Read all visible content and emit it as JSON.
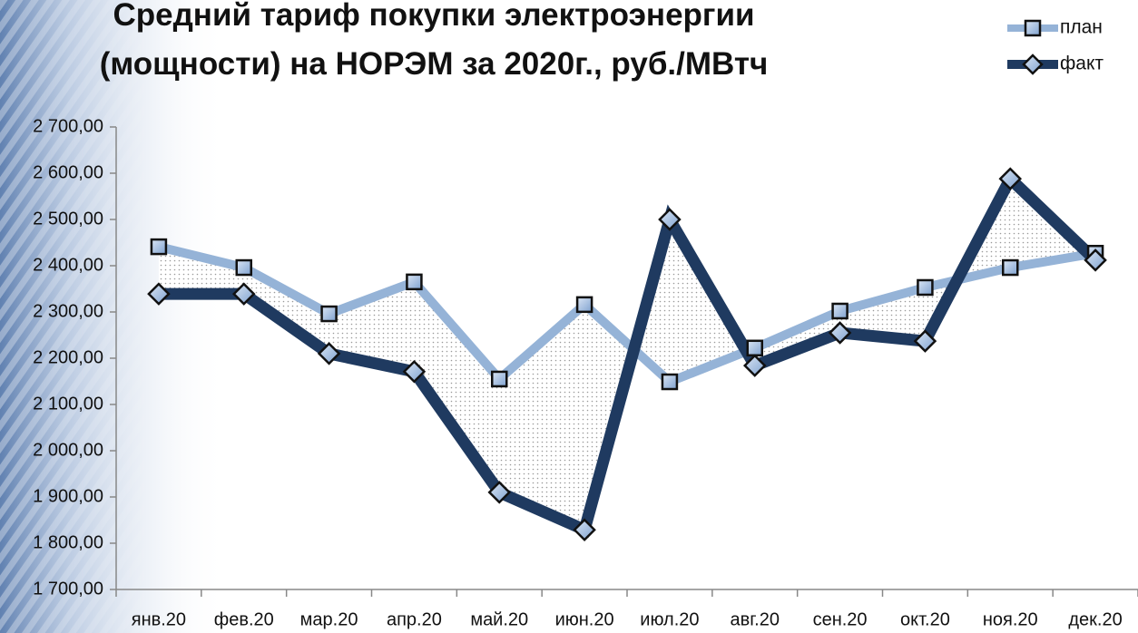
{
  "chart_data": {
    "type": "line",
    "title": [
      "Средний тариф покупки электроэнергии",
      "(мощности) на НОРЭМ за 2020г., руб./МВтч"
    ],
    "categories": [
      "янв.20",
      "фев.20",
      "мар.20",
      "апр.20",
      "май.20",
      "июн.20",
      "июл.20",
      "авг.20",
      "сен.20",
      "окт.20",
      "ноя.20",
      "дек.20"
    ],
    "series": [
      {
        "name": "план",
        "color": "#95b3d7",
        "marker": "square",
        "values": [
          2441,
          2396,
          2296,
          2365,
          2155,
          2316,
          2149,
          2222,
          2302,
          2353,
          2396,
          2427
        ]
      },
      {
        "name": "факт",
        "color": "#1f3a60",
        "marker": "diamond",
        "values": [
          2339,
          2339,
          2210,
          2171,
          1910,
          1829,
          2500,
          2184,
          2255,
          2237,
          2588,
          2412
        ]
      }
    ],
    "ylim": [
      1700,
      2700
    ],
    "yticks": [
      {
        "value": 1700,
        "label": "1 700,00"
      },
      {
        "value": 1800,
        "label": "1 800,00"
      },
      {
        "value": 1900,
        "label": "1 900,00"
      },
      {
        "value": 2000,
        "label": "2 000,00"
      },
      {
        "value": 2100,
        "label": "2 100,00"
      },
      {
        "value": 2200,
        "label": "2 200,00"
      },
      {
        "value": 2300,
        "label": "2 300,00"
      },
      {
        "value": 2400,
        "label": "2 400,00"
      },
      {
        "value": 2500,
        "label": "2 500,00"
      },
      {
        "value": 2600,
        "label": "2 600,00"
      },
      {
        "value": 2700,
        "label": "2 700,00"
      }
    ],
    "grid": false,
    "legend": "top-right"
  }
}
